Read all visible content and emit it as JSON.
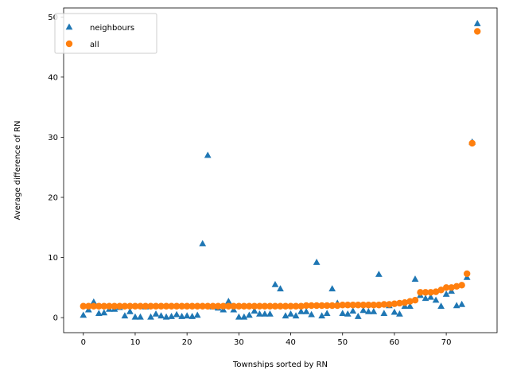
{
  "chart_data": {
    "type": "scatter",
    "xlabel": "Townships sorted by RN",
    "ylabel": "Average difference of RN",
    "xlim": [
      -3.8,
      79.8
    ],
    "ylim": [
      -2.5,
      51.5
    ],
    "xticks": [
      0,
      10,
      20,
      30,
      40,
      50,
      60,
      70
    ],
    "yticks": [
      0,
      10,
      20,
      30,
      40,
      50
    ],
    "grid": false,
    "legend_position": "top-left",
    "series": [
      {
        "name": "neighbours",
        "marker": "triangle",
        "color": "#1f77b4",
        "x": [
          0,
          1,
          2,
          3,
          4,
          5,
          6,
          7,
          8,
          9,
          10,
          11,
          12,
          13,
          14,
          15,
          16,
          17,
          18,
          19,
          20,
          21,
          22,
          23,
          24,
          25,
          26,
          27,
          28,
          29,
          30,
          31,
          32,
          33,
          34,
          35,
          36,
          37,
          38,
          39,
          40,
          41,
          42,
          43,
          44,
          45,
          46,
          47,
          48,
          49,
          50,
          51,
          52,
          53,
          54,
          55,
          56,
          57,
          58,
          59,
          60,
          61,
          62,
          63,
          64,
          65,
          66,
          67,
          68,
          69,
          70,
          71,
          72,
          73,
          74,
          75,
          76
        ],
        "y": [
          0.4,
          1.3,
          2.6,
          0.7,
          0.8,
          1.4,
          1.4,
          1.7,
          0.3,
          1.0,
          0.1,
          0.1,
          1.8,
          0.1,
          0.6,
          0.3,
          0.1,
          0.2,
          0.5,
          0.2,
          0.3,
          0.2,
          0.4,
          12.3,
          27.0,
          1.8,
          1.6,
          1.3,
          2.7,
          1.3,
          0.1,
          0.1,
          0.4,
          1.1,
          0.6,
          0.6,
          0.6,
          5.5,
          4.8,
          0.3,
          0.6,
          0.3,
          1.0,
          1.0,
          0.5,
          9.2,
          0.3,
          0.7,
          4.8,
          2.4,
          0.7,
          0.6,
          1.1,
          0.2,
          1.2,
          1.0,
          1.0,
          7.2,
          0.7,
          2.0,
          0.9,
          0.6,
          1.9,
          1.9,
          6.4,
          3.7,
          3.2,
          3.4,
          2.9,
          1.9,
          3.9,
          4.4,
          2.0,
          2.2,
          6.7,
          29.2,
          48.9
        ]
      },
      {
        "name": "all",
        "marker": "circle",
        "color": "#ff7f0e",
        "x": [
          0,
          1,
          2,
          3,
          4,
          5,
          6,
          7,
          8,
          9,
          10,
          11,
          12,
          13,
          14,
          15,
          16,
          17,
          18,
          19,
          20,
          21,
          22,
          23,
          24,
          25,
          26,
          27,
          28,
          29,
          30,
          31,
          32,
          33,
          34,
          35,
          36,
          37,
          38,
          39,
          40,
          41,
          42,
          43,
          44,
          45,
          46,
          47,
          48,
          49,
          50,
          51,
          52,
          53,
          54,
          55,
          56,
          57,
          58,
          59,
          60,
          61,
          62,
          63,
          64,
          65,
          66,
          67,
          68,
          69,
          70,
          71,
          72,
          73,
          74,
          75,
          76
        ],
        "y": [
          1.9,
          1.9,
          1.9,
          1.9,
          1.9,
          1.9,
          1.9,
          1.9,
          1.9,
          1.9,
          1.9,
          1.9,
          1.9,
          1.9,
          1.9,
          1.9,
          1.9,
          1.9,
          1.9,
          1.9,
          1.9,
          1.9,
          1.9,
          1.9,
          1.9,
          1.9,
          1.9,
          1.9,
          1.9,
          1.9,
          1.9,
          1.9,
          1.9,
          1.9,
          1.9,
          1.9,
          1.9,
          1.9,
          1.9,
          1.9,
          1.9,
          1.9,
          1.9,
          2.0,
          2.0,
          2.0,
          2.0,
          2.0,
          2.0,
          2.0,
          2.1,
          2.1,
          2.1,
          2.1,
          2.1,
          2.1,
          2.1,
          2.1,
          2.2,
          2.2,
          2.3,
          2.4,
          2.5,
          2.7,
          2.9,
          4.2,
          4.2,
          4.2,
          4.3,
          4.6,
          5.0,
          5.0,
          5.2,
          5.4,
          7.3,
          29.0,
          47.6
        ]
      }
    ]
  }
}
